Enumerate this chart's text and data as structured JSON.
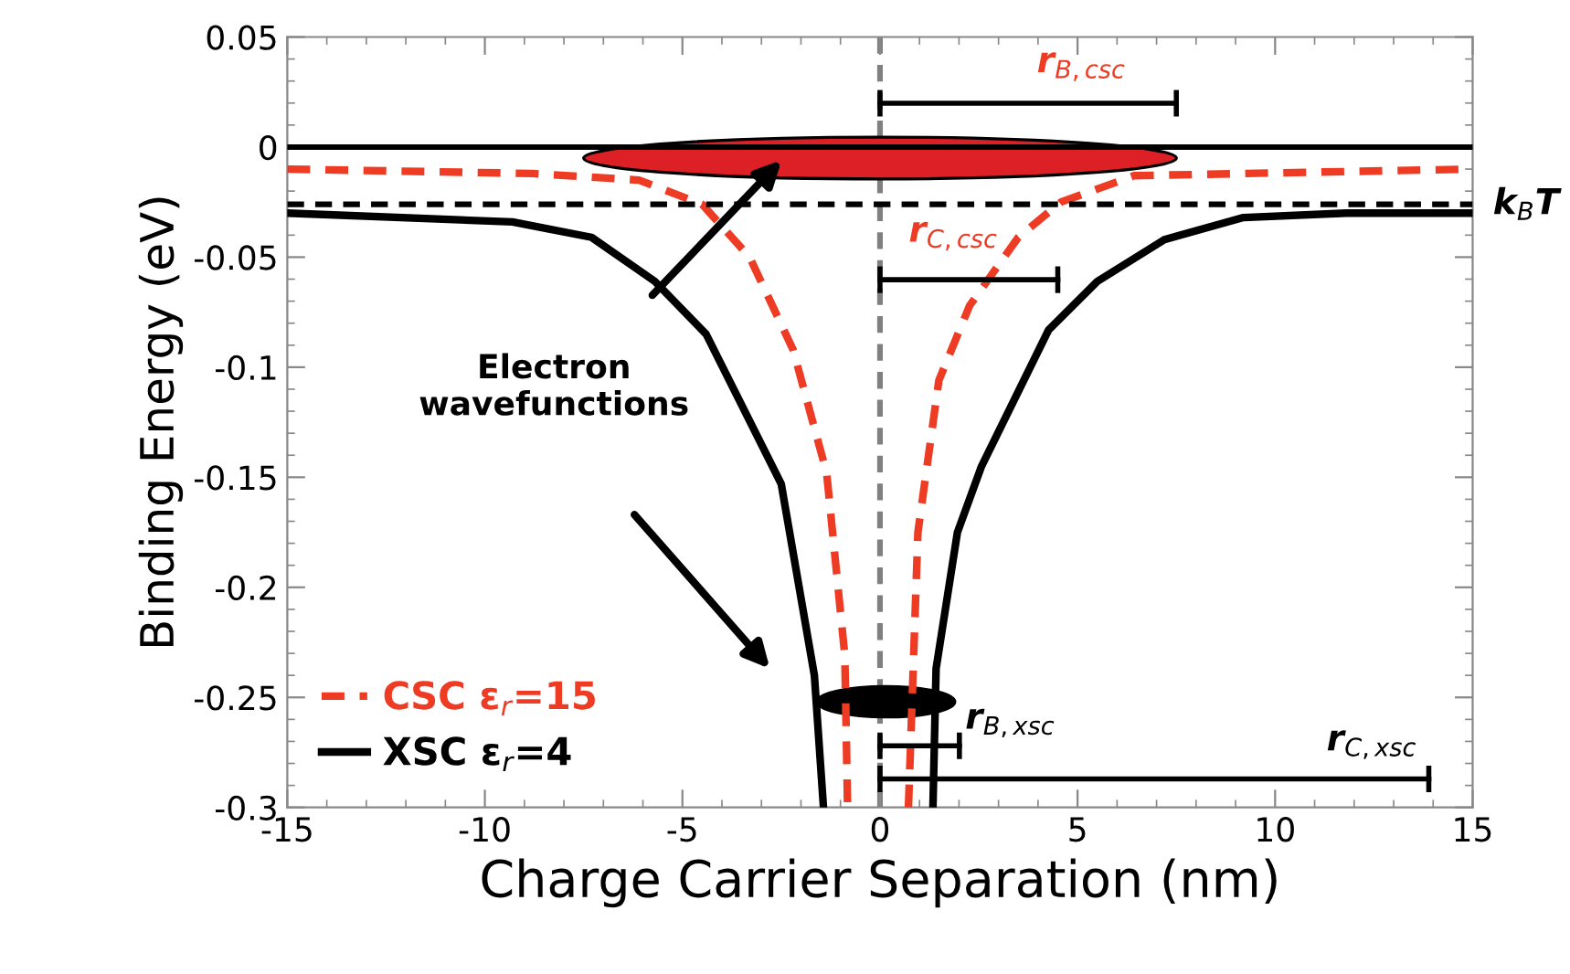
{
  "chart_data": {
    "type": "line",
    "xlabel": "Charge Carrier Separation (nm)",
    "ylabel": "Binding Energy (eV)",
    "xlim": [
      -15,
      15
    ],
    "ylim": [
      -0.3,
      0.05
    ],
    "xticks": [
      -15,
      -10,
      -5,
      0,
      5,
      10,
      15
    ],
    "yticks": [
      0.05,
      0,
      {
        "value": -0.05,
        "label": "-0.05"
      },
      {
        "value": -0.1,
        "label": "-0.1"
      },
      {
        "value": -0.15,
        "label": "-0.15"
      },
      {
        "value": -0.2,
        "label": "-0.2"
      },
      {
        "value": -0.25,
        "label": "-0.25"
      },
      {
        "value": -0.3,
        "label": "-0.3"
      }
    ],
    "grid": false,
    "legend": "bottom left",
    "marker": "none",
    "series": [
      {
        "name": "CSC ε$_{r}$=15",
        "color": "#ee3b24",
        "line_style": "dashed",
        "x": [
          -15,
          -8.8,
          -6.1,
          -4.5,
          -3.3,
          -2.2,
          -1.35,
          -0.89,
          -0.82,
          null,
          0.72,
          0.96,
          1.49,
          2.27,
          3.5,
          4.58,
          6.43,
          15
        ],
        "values": [
          -0.01,
          -0.012,
          -0.015,
          -0.026,
          -0.05,
          -0.092,
          -0.148,
          -0.231,
          -0.3,
          null,
          -0.3,
          -0.175,
          -0.106,
          -0.072,
          -0.041,
          -0.025,
          -0.013,
          -0.01
        ]
      },
      {
        "name": "XSC ε$_{r}$=4",
        "color": "#000000",
        "line_style": "solid",
        "x": [
          -15,
          -9.3,
          -7.3,
          -5.7,
          -4.4,
          -2.5,
          -1.66,
          -1.43,
          null,
          1.34,
          1.42,
          1.96,
          2.57,
          4.27,
          5.5,
          7.2,
          9.2,
          11.8,
          15
        ],
        "values": [
          -0.03,
          -0.034,
          -0.041,
          -0.061,
          -0.085,
          -0.153,
          -0.24,
          -0.3,
          null,
          -0.3,
          -0.237,
          -0.175,
          -0.145,
          -0.083,
          -0.061,
          -0.042,
          -0.032,
          -0.03,
          -0.03
        ]
      }
    ],
    "ref_lines": [
      {
        "axis": "y",
        "value": 0,
        "color": "#000000",
        "line_style": "solid"
      },
      {
        "axis": "y",
        "value": -0.026,
        "label": "k$_{B}$T",
        "color": "#000000",
        "line_style": "dashed"
      },
      {
        "axis": "x",
        "value": 0,
        "color": "#808080",
        "line_style": "dashed"
      }
    ],
    "annotations": [
      "r$_{B,csc}$",
      "r$_{C,csc}$",
      "r$_{B,xsc}$",
      "r$_{C,xsc}$",
      "Electron\nwavefunctions"
    ]
  }
}
